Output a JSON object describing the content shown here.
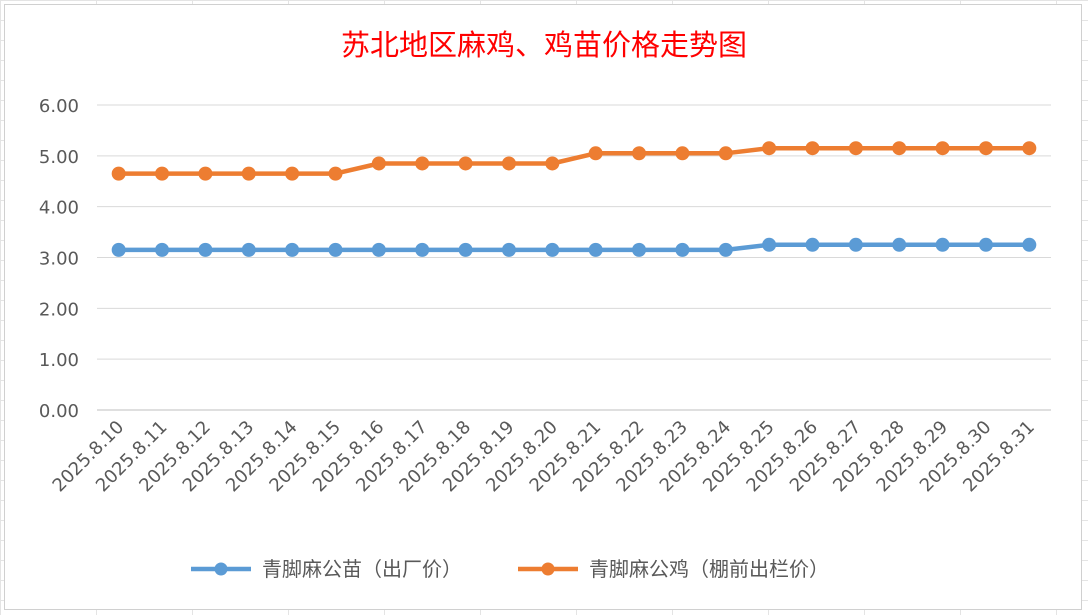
{
  "chart_data": {
    "type": "line",
    "title": "苏北地区麻鸡、鸡苗价格走势图",
    "title_color": "#ff0000",
    "categories": [
      "2025.8.10",
      "2025.8.11",
      "2025.8.12",
      "2025.8.13",
      "2025.8.14",
      "2025.8.15",
      "2025.8.16",
      "2025.8.17",
      "2025.8.18",
      "2025.8.19",
      "2025.8.20",
      "2025.8.21",
      "2025.8.22",
      "2025.8.23",
      "2025.8.24",
      "2025.8.25",
      "2025.8.26",
      "2025.8.27",
      "2025.8.28",
      "2025.8.29",
      "2025.8.30",
      "2025.8.31"
    ],
    "y_ticks": [
      "0.00",
      "1.00",
      "2.00",
      "3.00",
      "4.00",
      "5.00",
      "6.00"
    ],
    "ylim": [
      0,
      6
    ],
    "grid": true,
    "legend_position": "bottom",
    "series": [
      {
        "name": "青脚麻公苗（出厂价）",
        "color": "#5b9bd5",
        "values": [
          3.15,
          3.15,
          3.15,
          3.15,
          3.15,
          3.15,
          3.15,
          3.15,
          3.15,
          3.15,
          3.15,
          3.15,
          3.15,
          3.15,
          3.15,
          3.25,
          3.25,
          3.25,
          3.25,
          3.25,
          3.25,
          3.25
        ]
      },
      {
        "name": "青脚麻公鸡（棚前出栏价）",
        "color": "#ed7d31",
        "values": [
          4.65,
          4.65,
          4.65,
          4.65,
          4.65,
          4.65,
          4.85,
          4.85,
          4.85,
          4.85,
          4.85,
          5.05,
          5.05,
          5.05,
          5.05,
          5.15,
          5.15,
          5.15,
          5.15,
          5.15,
          5.15,
          5.15
        ]
      }
    ]
  }
}
